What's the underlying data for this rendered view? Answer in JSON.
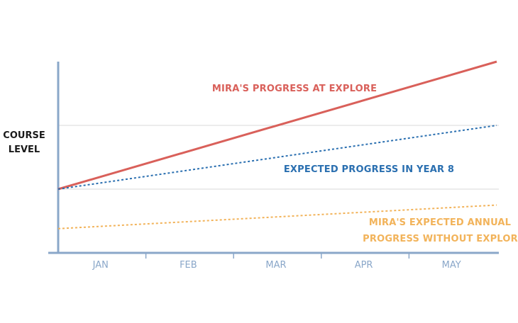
{
  "chart_data": {
    "type": "line",
    "ylabel": [
      "COURSE",
      "LEVEL"
    ],
    "xlabel": "",
    "categories": [
      "JAN",
      "FEB",
      "MAR",
      "APR",
      "MAY"
    ],
    "x": [
      0,
      5
    ],
    "ylim": [
      0,
      3
    ],
    "grid": true,
    "series": [
      {
        "name": "MIRA'S PROGRESS AT EXPLORE",
        "values": [
          1.0,
          3.0
        ],
        "color": "#d9605a",
        "style": "solid"
      },
      {
        "name": "EXPECTED PROGRESS IN YEAR 8",
        "values": [
          1.0,
          2.0
        ],
        "color": "#2a6fb0",
        "style": "dotted"
      },
      {
        "name": "MIRA'S EXPECTED ANNUAL PROGRESS WITHOUT EXPLORE",
        "values": [
          0.38,
          0.75
        ],
        "color": "#f2b35a",
        "style": "dotted"
      }
    ],
    "labels": {
      "red": "MIRA'S PROGRESS AT EXPLORE",
      "blue": "EXPECTED PROGRESS IN YEAR 8",
      "orange_line1": "MIRA'S EXPECTED ANNUAL",
      "orange_line2": "PROGRESS WITHOUT EXPLORE"
    },
    "colors": {
      "axis": "#8aa7c9",
      "grid": "#d9d9d9",
      "tick_text": "#8aa7c9"
    }
  }
}
